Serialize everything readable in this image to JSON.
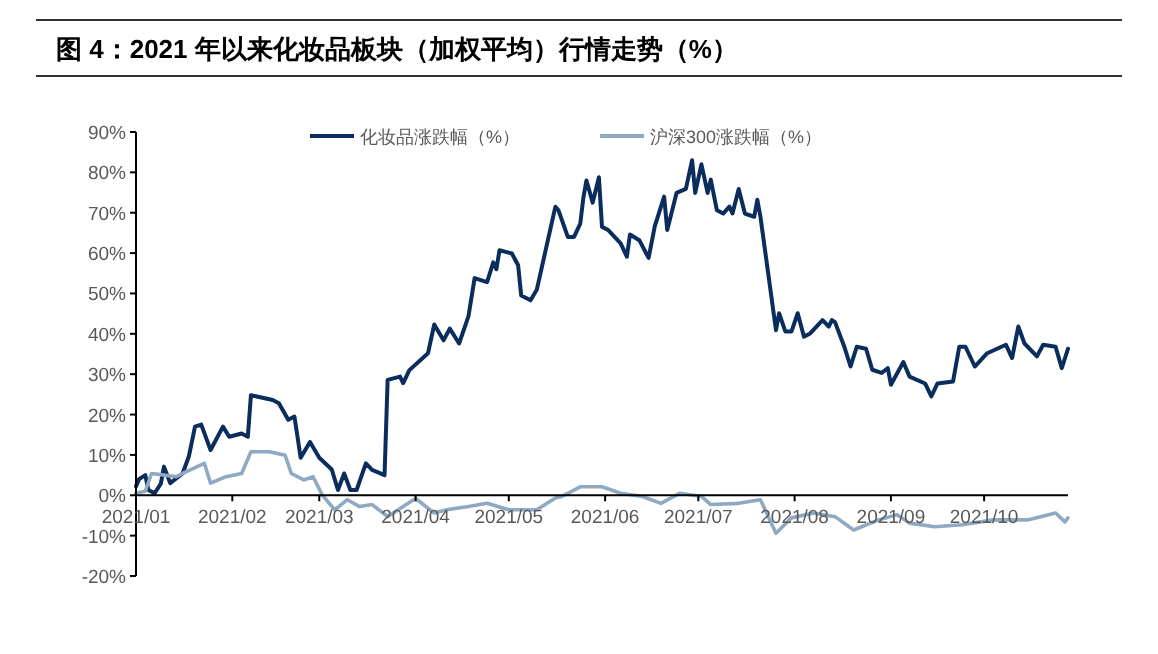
{
  "chart_data": {
    "type": "line",
    "title": "图 4：2021 年以来化妆品板块（加权平均）行情走势（%）",
    "xlim": [
      "2021-01-01",
      "2021-10-28"
    ],
    "xticks": [
      {
        "value": "2021-01-01",
        "label": "2021/01"
      },
      {
        "value": "2021-02-01",
        "label": "2021/02"
      },
      {
        "value": "2021-03-01",
        "label": "2021/03"
      },
      {
        "value": "2021-04-01",
        "label": "2021/04"
      },
      {
        "value": "2021-05-01",
        "label": "2021/05"
      },
      {
        "value": "2021-06-01",
        "label": "2021/06"
      },
      {
        "value": "2021-07-01",
        "label": "2021/07"
      },
      {
        "value": "2021-08-01",
        "label": "2021/08"
      },
      {
        "value": "2021-09-01",
        "label": "2021/09"
      },
      {
        "value": "2021-10-01",
        "label": "2021/10"
      }
    ],
    "ylim": [
      -20,
      90
    ],
    "yticks": [
      {
        "value": -20,
        "label": "-20%"
      },
      {
        "value": -10,
        "label": "-10%"
      },
      {
        "value": 0,
        "label": "0%"
      },
      {
        "value": 10,
        "label": "10%"
      },
      {
        "value": 20,
        "label": "20%"
      },
      {
        "value": 30,
        "label": "30%"
      },
      {
        "value": 40,
        "label": "40%"
      },
      {
        "value": 50,
        "label": "50%"
      },
      {
        "value": 60,
        "label": "60%"
      },
      {
        "value": 70,
        "label": "70%"
      },
      {
        "value": 80,
        "label": "80%"
      },
      {
        "value": 90,
        "label": "90%"
      }
    ],
    "grid": false,
    "legend": "top",
    "marker": "none",
    "line_style": "solid",
    "series": [
      {
        "name": "化妆品涨跌幅（%）",
        "color": "#0b2d5e",
        "x": [
          "2021-01-01",
          "2021-01-02",
          "2021-01-04",
          "2021-01-05",
          "2021-01-07",
          "2021-01-09",
          "2021-01-10",
          "2021-01-12",
          "2021-01-16",
          "2021-01-18",
          "2021-01-20",
          "2021-01-22",
          "2021-01-25",
          "2021-01-29",
          "2021-01-31",
          "2021-02-04",
          "2021-02-06",
          "2021-02-07",
          "2021-02-14",
          "2021-02-16",
          "2021-02-19",
          "2021-02-21",
          "2021-02-23",
          "2021-02-26",
          "2021-03-01",
          "2021-03-05",
          "2021-03-07",
          "2021-03-09",
          "2021-03-11",
          "2021-03-13",
          "2021-03-16",
          "2021-03-18",
          "2021-03-22",
          "2021-03-23",
          "2021-03-27",
          "2021-03-28",
          "2021-03-30",
          "2021-04-05",
          "2021-04-07",
          "2021-04-10",
          "2021-04-12",
          "2021-04-15",
          "2021-04-18",
          "2021-04-20",
          "2021-04-24",
          "2021-04-26",
          "2021-04-27",
          "2021-04-28",
          "2021-05-02",
          "2021-05-04",
          "2021-05-05",
          "2021-05-08",
          "2021-05-10",
          "2021-05-16",
          "2021-05-17",
          "2021-05-20",
          "2021-05-22",
          "2021-05-24",
          "2021-05-25",
          "2021-05-26",
          "2021-05-28",
          "2021-05-30",
          "2021-05-31",
          "2021-06-02",
          "2021-06-06",
          "2021-06-08",
          "2021-06-09",
          "2021-06-12",
          "2021-06-15",
          "2021-06-17",
          "2021-06-20",
          "2021-06-21",
          "2021-06-24",
          "2021-06-27",
          "2021-06-29",
          "2021-06-30",
          "2021-07-02",
          "2021-07-04",
          "2021-07-05",
          "2021-07-07",
          "2021-07-09",
          "2021-07-11",
          "2021-07-12",
          "2021-07-14",
          "2021-07-16",
          "2021-07-19",
          "2021-07-20",
          "2021-07-21",
          "2021-07-26",
          "2021-07-27",
          "2021-07-29",
          "2021-07-31",
          "2021-08-02",
          "2021-08-04",
          "2021-08-06",
          "2021-08-10",
          "2021-08-12",
          "2021-08-13",
          "2021-08-14",
          "2021-08-17",
          "2021-08-19",
          "2021-08-21",
          "2021-08-24",
          "2021-08-26",
          "2021-08-29",
          "2021-08-31",
          "2021-09-01",
          "2021-09-05",
          "2021-09-07",
          "2021-09-12",
          "2021-09-14",
          "2021-09-16",
          "2021-09-21",
          "2021-09-23",
          "2021-09-25",
          "2021-09-28",
          "2021-10-02",
          "2021-10-08",
          "2021-10-10",
          "2021-10-12",
          "2021-10-14",
          "2021-10-18",
          "2021-10-20",
          "2021-10-24",
          "2021-10-26",
          "2021-10-28"
        ],
        "values": [
          2.2,
          4,
          5,
          1.3,
          0.5,
          2.9,
          7.1,
          3,
          5.4,
          9.6,
          17,
          17.5,
          11.2,
          17,
          14.5,
          15.3,
          14.5,
          24.8,
          23.6,
          22.8,
          18.7,
          19.5,
          9.3,
          13.2,
          9.3,
          6.4,
          1.3,
          5.4,
          1.3,
          1.3,
          7.9,
          6.3,
          5,
          28.6,
          29.4,
          27.8,
          31,
          35.2,
          42.3,
          38.4,
          41.3,
          37.6,
          44.3,
          53.8,
          52.8,
          57.7,
          56,
          60.7,
          59.9,
          57,
          49.5,
          48.3,
          50.9,
          71.5,
          70.6,
          64,
          64,
          67.3,
          73.7,
          78,
          72.5,
          78.8,
          66.5,
          65.7,
          62.4,
          59.1,
          64.6,
          63.2,
          58.8,
          66.7,
          74,
          65.7,
          74.9,
          75.9,
          83,
          74.9,
          82,
          74.9,
          78.2,
          70.6,
          69.8,
          71.5,
          69.8,
          75.9,
          69.8,
          69,
          73.2,
          69,
          40.9,
          45.1,
          40.6,
          40.6,
          45.1,
          39.3,
          40.1,
          43.4,
          41.8,
          43.4,
          42.9,
          36.8,
          31.9,
          36.8,
          36.3,
          31.1,
          30.3,
          31.5,
          27.4,
          33,
          29.4,
          27.7,
          24.5,
          27.7,
          28.2,
          36.8,
          36.8,
          31.9,
          35.2,
          37.3,
          34,
          41.8,
          37.6,
          34.4,
          37.3,
          36.8,
          31.5,
          36.3
        ]
      },
      {
        "name": "沪深300涨跌幅（%）",
        "color": "#8ea9c1",
        "x": [
          "2021-01-01",
          "2021-01-04",
          "2021-01-06",
          "2021-01-10",
          "2021-01-14",
          "2021-01-16",
          "2021-01-23",
          "2021-01-25",
          "2021-01-30",
          "2021-02-04",
          "2021-02-07",
          "2021-02-13",
          "2021-02-18",
          "2021-02-20",
          "2021-02-24",
          "2021-02-27",
          "2021-03-02",
          "2021-03-06",
          "2021-03-10",
          "2021-03-14",
          "2021-03-18",
          "2021-03-23",
          "2021-03-28",
          "2021-04-01",
          "2021-04-07",
          "2021-04-11",
          "2021-04-18",
          "2021-04-24",
          "2021-05-01",
          "2021-05-10",
          "2021-05-16",
          "2021-05-18",
          "2021-05-24",
          "2021-05-31",
          "2021-06-06",
          "2021-06-13",
          "2021-06-19",
          "2021-06-25",
          "2021-07-02",
          "2021-07-05",
          "2021-07-14",
          "2021-07-21",
          "2021-07-26",
          "2021-07-31",
          "2021-08-07",
          "2021-08-14",
          "2021-08-20",
          "2021-08-28",
          "2021-09-03",
          "2021-09-07",
          "2021-09-15",
          "2021-09-24",
          "2021-10-04",
          "2021-10-15",
          "2021-10-24",
          "2021-10-27",
          "2021-10-28"
        ],
        "values": [
          0.5,
          1,
          5.4,
          5,
          4.6,
          5.4,
          7.9,
          3,
          4.6,
          5.4,
          10.8,
          10.8,
          9.9,
          5.4,
          3.8,
          4.6,
          0,
          -3.6,
          -1.1,
          -2.8,
          -2.3,
          -5.3,
          -2.8,
          -0.8,
          -4.4,
          -3.6,
          -2.8,
          -2,
          -3.6,
          -3.6,
          -0.7,
          -0.3,
          2.1,
          2.1,
          0.5,
          -0.3,
          -2,
          0.5,
          -0.3,
          -2.3,
          -2,
          -1.1,
          -9.4,
          -5.6,
          -4.4,
          -5.3,
          -8.6,
          -6.1,
          -4.8,
          -6.9,
          -7.8,
          -7.3,
          -6.1,
          -6.1,
          -4.4,
          -6.6,
          -5.6
        ]
      }
    ]
  }
}
